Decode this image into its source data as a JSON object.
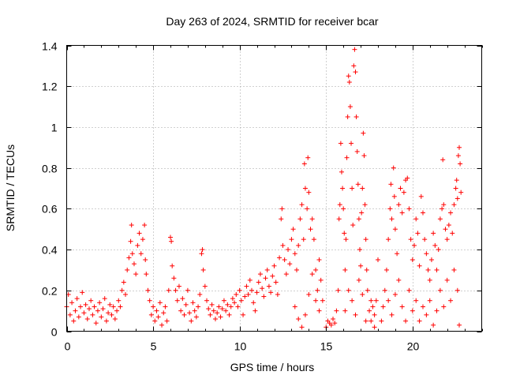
{
  "chart_data": {
    "type": "scatter",
    "title": "Day 263 of 2024, SRMTID for receiver bcar",
    "xlabel": "GPS time / hours",
    "ylabel": "SRMTID / TECUs",
    "xlim": [
      0,
      24
    ],
    "ylim": [
      0,
      1.4
    ],
    "xticks": [
      0,
      5,
      10,
      15,
      20
    ],
    "xtick_labels": [
      "0",
      "5",
      "10",
      "15",
      "20"
    ],
    "yticks": [
      0,
      0.2,
      0.4,
      0.6,
      0.8,
      1.0,
      1.2,
      1.4
    ],
    "ytick_labels": [
      "0",
      "0.2",
      "0.4",
      "0.6",
      "0.8",
      "1",
      "1.2",
      "1.4"
    ],
    "grid": true,
    "marker": "+",
    "series": [
      {
        "name": "SRMTID",
        "color": "#ff0000",
        "points": [
          [
            0.0,
            0.12
          ],
          [
            0.1,
            0.18
          ],
          [
            0.2,
            0.08
          ],
          [
            0.3,
            0.14
          ],
          [
            0.4,
            0.05
          ],
          [
            0.5,
            0.1
          ],
          [
            0.6,
            0.16
          ],
          [
            0.7,
            0.07
          ],
          [
            0.8,
            0.12
          ],
          [
            0.9,
            0.19
          ],
          [
            1.0,
            0.09
          ],
          [
            1.1,
            0.13
          ],
          [
            1.2,
            0.06
          ],
          [
            1.3,
            0.11
          ],
          [
            1.4,
            0.15
          ],
          [
            1.5,
            0.08
          ],
          [
            1.6,
            0.12
          ],
          [
            1.7,
            0.04
          ],
          [
            1.8,
            0.1
          ],
          [
            1.9,
            0.14
          ],
          [
            2.0,
            0.07
          ],
          [
            2.1,
            0.11
          ],
          [
            2.2,
            0.16
          ],
          [
            2.3,
            0.05
          ],
          [
            2.4,
            0.09
          ],
          [
            2.5,
            0.13
          ],
          [
            2.6,
            0.08
          ],
          [
            2.7,
            0.12
          ],
          [
            2.8,
            0.06
          ],
          [
            2.9,
            0.1
          ],
          [
            3.0,
            0.15
          ],
          [
            3.1,
            0.12
          ],
          [
            3.2,
            0.2
          ],
          [
            3.3,
            0.24
          ],
          [
            3.4,
            0.18
          ],
          [
            3.5,
            0.3
          ],
          [
            3.6,
            0.36
          ],
          [
            3.7,
            0.44
          ],
          [
            3.75,
            0.52
          ],
          [
            3.8,
            0.38
          ],
          [
            3.9,
            0.33
          ],
          [
            4.0,
            0.28
          ],
          [
            4.1,
            0.42
          ],
          [
            4.2,
            0.48
          ],
          [
            4.3,
            0.38
          ],
          [
            4.4,
            0.45
          ],
          [
            4.5,
            0.52
          ],
          [
            4.55,
            0.35
          ],
          [
            4.6,
            0.28
          ],
          [
            4.7,
            0.2
          ],
          [
            4.8,
            0.15
          ],
          [
            4.9,
            0.08
          ],
          [
            5.0,
            0.12
          ],
          [
            5.1,
            0.05
          ],
          [
            5.2,
            0.1
          ],
          [
            5.3,
            0.07
          ],
          [
            5.4,
            0.14
          ],
          [
            5.5,
            0.03
          ],
          [
            5.6,
            0.09
          ],
          [
            5.7,
            0.12
          ],
          [
            5.8,
            0.05
          ],
          [
            5.9,
            0.2
          ],
          [
            6.0,
            0.46
          ],
          [
            6.05,
            0.44
          ],
          [
            6.1,
            0.32
          ],
          [
            6.2,
            0.26
          ],
          [
            6.3,
            0.2
          ],
          [
            6.4,
            0.15
          ],
          [
            6.5,
            0.22
          ],
          [
            6.6,
            0.1
          ],
          [
            6.7,
            0.16
          ],
          [
            6.8,
            0.08
          ],
          [
            6.9,
            0.13
          ],
          [
            7.0,
            0.2
          ],
          [
            7.1,
            0.09
          ],
          [
            7.2,
            0.05
          ],
          [
            7.3,
            0.14
          ],
          [
            7.4,
            0.1
          ],
          [
            7.5,
            0.07
          ],
          [
            7.6,
            0.12
          ],
          [
            7.7,
            0.18
          ],
          [
            7.8,
            0.38
          ],
          [
            7.85,
            0.4
          ],
          [
            7.9,
            0.3
          ],
          [
            8.0,
            0.22
          ],
          [
            8.1,
            0.15
          ],
          [
            8.2,
            0.11
          ],
          [
            8.3,
            0.08
          ],
          [
            8.4,
            0.13
          ],
          [
            8.5,
            0.1
          ],
          [
            8.6,
            0.06
          ],
          [
            8.7,
            0.09
          ],
          [
            8.8,
            0.12
          ],
          [
            8.9,
            0.07
          ],
          [
            9.0,
            0.11
          ],
          [
            9.1,
            0.15
          ],
          [
            9.2,
            0.1
          ],
          [
            9.3,
            0.13
          ],
          [
            9.4,
            0.08
          ],
          [
            9.5,
            0.12
          ],
          [
            9.6,
            0.16
          ],
          [
            9.7,
            0.14
          ],
          [
            9.8,
            0.18
          ],
          [
            9.9,
            0.12
          ],
          [
            10.0,
            0.2
          ],
          [
            10.1,
            0.15
          ],
          [
            10.2,
            0.08
          ],
          [
            10.3,
            0.17
          ],
          [
            10.4,
            0.22
          ],
          [
            10.5,
            0.18
          ],
          [
            10.6,
            0.25
          ],
          [
            10.7,
            0.2
          ],
          [
            10.8,
            0.14
          ],
          [
            10.9,
            0.1
          ],
          [
            11.0,
            0.19
          ],
          [
            11.1,
            0.24
          ],
          [
            11.2,
            0.28
          ],
          [
            11.3,
            0.21
          ],
          [
            11.4,
            0.17
          ],
          [
            11.5,
            0.26
          ],
          [
            11.6,
            0.3
          ],
          [
            11.7,
            0.22
          ],
          [
            11.8,
            0.19
          ],
          [
            11.9,
            0.27
          ],
          [
            12.0,
            0.32
          ],
          [
            12.1,
            0.24
          ],
          [
            12.2,
            0.18
          ],
          [
            12.3,
            0.36
          ],
          [
            12.4,
            0.55
          ],
          [
            12.45,
            0.6
          ],
          [
            12.5,
            0.42
          ],
          [
            12.6,
            0.35
          ],
          [
            12.7,
            0.28
          ],
          [
            12.8,
            0.4
          ],
          [
            12.9,
            0.33
          ],
          [
            13.0,
            0.45
          ],
          [
            13.1,
            0.5
          ],
          [
            13.2,
            0.38
          ],
          [
            13.3,
            0.3
          ],
          [
            13.4,
            0.42
          ],
          [
            13.5,
            0.55
          ],
          [
            13.6,
            0.62
          ],
          [
            13.7,
            0.45
          ],
          [
            13.75,
            0.82
          ],
          [
            13.8,
            0.7
          ],
          [
            13.9,
            0.6
          ],
          [
            13.95,
            0.85
          ],
          [
            14.0,
            0.68
          ],
          [
            14.1,
            0.5
          ],
          [
            14.2,
            0.55
          ],
          [
            14.3,
            0.45
          ],
          [
            14.4,
            0.3
          ],
          [
            14.5,
            0.2
          ],
          [
            14.6,
            0.35
          ],
          [
            14.7,
            0.25
          ],
          [
            14.8,
            0.15
          ],
          [
            13.2,
            0.12
          ],
          [
            13.4,
            0.06
          ],
          [
            13.6,
            0.02
          ],
          [
            13.8,
            0.08
          ],
          [
            14.0,
            0.18
          ],
          [
            14.2,
            0.28
          ],
          [
            14.4,
            0.15
          ],
          [
            14.6,
            0.1
          ],
          [
            15.0,
            0.02
          ],
          [
            15.1,
            0.05
          ],
          [
            15.2,
            0.04
          ],
          [
            15.3,
            0.03
          ],
          [
            15.4,
            0.06
          ],
          [
            15.5,
            0.04
          ],
          [
            15.6,
            0.1
          ],
          [
            15.7,
            0.2
          ],
          [
            15.75,
            0.55
          ],
          [
            15.8,
            0.62
          ],
          [
            15.85,
            0.92
          ],
          [
            15.9,
            0.78
          ],
          [
            15.95,
            0.7
          ],
          [
            16.0,
            0.6
          ],
          [
            16.05,
            0.48
          ],
          [
            16.1,
            0.3
          ],
          [
            16.15,
            0.45
          ],
          [
            16.2,
            0.85
          ],
          [
            16.25,
            1.05
          ],
          [
            16.3,
            1.25
          ],
          [
            16.35,
            1.22
          ],
          [
            16.4,
            1.1
          ],
          [
            16.45,
            0.92
          ],
          [
            16.5,
            0.7
          ],
          [
            16.55,
            0.52
          ],
          [
            16.6,
            1.3
          ],
          [
            16.65,
            1.38
          ],
          [
            16.7,
            1.27
          ],
          [
            16.75,
            1.05
          ],
          [
            16.8,
            0.88
          ],
          [
            16.85,
            0.72
          ],
          [
            16.9,
            0.55
          ],
          [
            16.95,
            0.4
          ],
          [
            17.0,
            0.32
          ],
          [
            17.05,
            0.58
          ],
          [
            17.1,
            0.7
          ],
          [
            17.15,
            0.97
          ],
          [
            17.2,
            0.86
          ],
          [
            17.25,
            0.62
          ],
          [
            17.3,
            0.45
          ],
          [
            17.35,
            0.3
          ],
          [
            17.4,
            0.2
          ],
          [
            17.5,
            0.1
          ],
          [
            17.6,
            0.05
          ],
          [
            17.7,
            0.12
          ],
          [
            17.8,
            0.08
          ],
          [
            17.9,
            0.15
          ],
          [
            18.0,
            0.35
          ],
          [
            16.1,
            0.1
          ],
          [
            16.3,
            0.2
          ],
          [
            16.5,
            0.15
          ],
          [
            16.7,
            0.08
          ],
          [
            16.9,
            0.25
          ],
          [
            17.1,
            0.18
          ],
          [
            17.3,
            0.05
          ],
          [
            17.6,
            0.15
          ],
          [
            17.8,
            0.02
          ],
          [
            18.2,
            0.05
          ],
          [
            18.3,
            0.12
          ],
          [
            18.4,
            0.2
          ],
          [
            18.5,
            0.3
          ],
          [
            18.6,
            0.45
          ],
          [
            18.7,
            0.6
          ],
          [
            18.75,
            0.72
          ],
          [
            18.8,
            0.55
          ],
          [
            18.9,
            0.8
          ],
          [
            18.95,
            0.66
          ],
          [
            19.0,
            0.5
          ],
          [
            19.1,
            0.38
          ],
          [
            19.2,
            0.62
          ],
          [
            19.3,
            0.7
          ],
          [
            19.4,
            0.58
          ],
          [
            19.5,
            0.68
          ],
          [
            19.6,
            0.74
          ],
          [
            19.7,
            0.75
          ],
          [
            19.8,
            0.6
          ],
          [
            19.9,
            0.45
          ],
          [
            20.0,
            0.35
          ],
          [
            20.1,
            0.42
          ],
          [
            20.2,
            0.55
          ],
          [
            20.3,
            0.48
          ],
          [
            20.4,
            0.32
          ],
          [
            20.5,
            0.66
          ],
          [
            20.6,
            0.58
          ],
          [
            20.7,
            0.45
          ],
          [
            20.8,
            0.38
          ],
          [
            20.9,
            0.3
          ],
          [
            21.0,
            0.25
          ],
          [
            21.1,
            0.35
          ],
          [
            21.2,
            0.48
          ],
          [
            21.3,
            0.42
          ],
          [
            21.4,
            0.3
          ],
          [
            21.5,
            0.4
          ],
          [
            21.6,
            0.55
          ],
          [
            21.7,
            0.6
          ],
          [
            21.75,
            0.84
          ],
          [
            21.8,
            0.62
          ],
          [
            21.9,
            0.5
          ],
          [
            22.0,
            0.45
          ],
          [
            22.1,
            0.52
          ],
          [
            22.2,
            0.58
          ],
          [
            22.3,
            0.48
          ],
          [
            22.4,
            0.62
          ],
          [
            22.5,
            0.7
          ],
          [
            22.55,
            0.74
          ],
          [
            22.6,
            0.65
          ],
          [
            22.65,
            0.86
          ],
          [
            22.7,
            0.9
          ],
          [
            22.75,
            0.82
          ],
          [
            22.8,
            0.68
          ],
          [
            18.6,
            0.15
          ],
          [
            18.8,
            0.08
          ],
          [
            19.0,
            0.18
          ],
          [
            19.2,
            0.25
          ],
          [
            19.4,
            0.12
          ],
          [
            19.6,
            0.05
          ],
          [
            19.8,
            0.2
          ],
          [
            20.0,
            0.1
          ],
          [
            20.2,
            0.15
          ],
          [
            20.4,
            0.05
          ],
          [
            20.6,
            0.12
          ],
          [
            20.8,
            0.08
          ],
          [
            21.0,
            0.15
          ],
          [
            21.2,
            0.03
          ],
          [
            21.4,
            0.1
          ],
          [
            21.6,
            0.2
          ],
          [
            21.8,
            0.12
          ],
          [
            22.0,
            0.25
          ],
          [
            22.2,
            0.15
          ],
          [
            22.4,
            0.3
          ],
          [
            22.6,
            0.2
          ],
          [
            22.7,
            0.03
          ]
        ]
      }
    ]
  }
}
